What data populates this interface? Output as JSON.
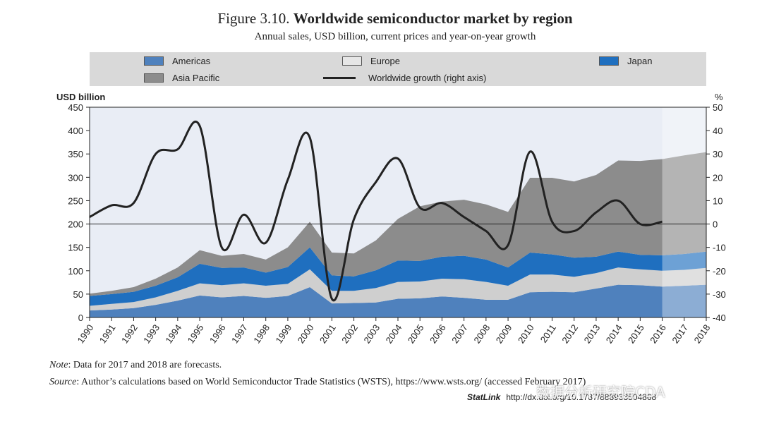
{
  "figure": {
    "label": "Figure 3.10.",
    "title": "Worldwide semiconductor market by region",
    "subtitle": "Annual sales, USD billion, current prices and year-on-year growth"
  },
  "legend": {
    "americas": "Americas",
    "europe": "Europe",
    "japan": "Japan",
    "asia_pacific": "Asia Pacific",
    "growth": "Worldwide growth (right axis)"
  },
  "chart_data": {
    "type": "area",
    "stacked": true,
    "title": "Worldwide semiconductor market by region",
    "ylabel": "USD billion",
    "y2label": "%",
    "ylim": [
      0,
      450
    ],
    "y2lim": [
      -40,
      50
    ],
    "yticks": [
      0,
      50,
      100,
      150,
      200,
      250,
      300,
      350,
      400,
      450
    ],
    "y2ticks": [
      -40,
      -30,
      -20,
      -10,
      0,
      10,
      20,
      30,
      40,
      50
    ],
    "forecast_from": "2016",
    "categories": [
      "1990",
      "1991",
      "1992",
      "1993",
      "1994",
      "1995",
      "1996",
      "1997",
      "1998",
      "1999",
      "2000",
      "2001",
      "2002",
      "2003",
      "2004",
      "2005",
      "2006",
      "2007",
      "2008",
      "2009",
      "2010",
      "2011",
      "2012",
      "2013",
      "2014",
      "2015",
      "2016",
      "2017",
      "2018"
    ],
    "series": [
      {
        "name": "Americas",
        "color": "#4f81bd",
        "values": [
          15,
          17,
          20,
          27,
          36,
          47,
          43,
          46,
          42,
          46,
          65,
          30,
          31,
          32,
          40,
          41,
          45,
          42,
          38,
          38,
          54,
          55,
          54,
          62,
          70,
          69,
          66,
          68,
          70
        ]
      },
      {
        "name": "Europe",
        "color": "#cfcfcf",
        "values": [
          10,
          12,
          13,
          16,
          21,
          26,
          26,
          27,
          26,
          26,
          38,
          27,
          26,
          31,
          36,
          36,
          38,
          40,
          38,
          30,
          38,
          37,
          33,
          33,
          37,
          34,
          34,
          34,
          36
        ]
      },
      {
        "name": "Japan",
        "color": "#1f6fbf",
        "values": [
          21,
          21,
          22,
          25,
          29,
          42,
          37,
          34,
          28,
          36,
          47,
          33,
          31,
          38,
          46,
          44,
          47,
          50,
          48,
          39,
          47,
          43,
          41,
          35,
          34,
          31,
          33,
          34,
          35
        ]
      },
      {
        "name": "Asia Pacific",
        "color": "#8c8c8c",
        "values": [
          5,
          7,
          10,
          15,
          21,
          29,
          26,
          29,
          28,
          42,
          55,
          49,
          49,
          64,
          89,
          117,
          118,
          120,
          118,
          119,
          160,
          164,
          163,
          175,
          195,
          201,
          206,
          211,
          213
        ]
      }
    ],
    "growth": {
      "name": "Worldwide growth (right axis)",
      "color": "#222222",
      "values": [
        3,
        8,
        9,
        30,
        32,
        42,
        -10,
        4,
        -8,
        19,
        37,
        -32,
        2,
        18,
        28,
        7,
        9,
        3,
        -3,
        -9,
        31,
        1,
        -3,
        5,
        10,
        0,
        1,
        null,
        null
      ]
    }
  },
  "notes": {
    "note_label": "Note",
    "note_text": ": Data for 2017 and 2018 are forecasts.",
    "source_label": "Source",
    "source_text": ": Author’s calculations based on World Semiconductor Trade Statistics (WSTS), https://www.wsts.org/ (accessed February 2017)",
    "statlink_label": "StatLink",
    "statlink_url": "http://dx.doi.org/10.1787/888933504868"
  },
  "watermark": "数据分析研究院CDA"
}
